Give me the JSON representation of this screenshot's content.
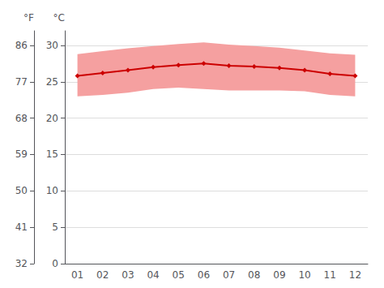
{
  "chart_data": {
    "type": "line",
    "categories": [
      "01",
      "02",
      "03",
      "04",
      "05",
      "06",
      "07",
      "08",
      "09",
      "10",
      "11",
      "12"
    ],
    "ylabel": "°C",
    "y2label": "°F",
    "ylim": [
      0,
      32
    ],
    "yticks": [
      0,
      5,
      10,
      15,
      20,
      25,
      30
    ],
    "y2lim": [
      32,
      89.6
    ],
    "y2ticks": [
      32,
      41,
      50,
      59,
      68,
      77,
      86
    ],
    "grid": true,
    "series": [
      {
        "type": "band",
        "color": "#f5a0a0",
        "low": [
          23.0,
          23.2,
          23.5,
          24.0,
          24.2,
          24.0,
          23.8,
          23.8,
          23.8,
          23.7,
          23.2,
          23.0
        ],
        "high": [
          28.8,
          29.2,
          29.6,
          29.9,
          30.2,
          30.4,
          30.1,
          29.9,
          29.7,
          29.3,
          28.9,
          28.7
        ]
      },
      {
        "type": "line",
        "color": "#cc0000",
        "marker": "diamond",
        "values": [
          25.8,
          26.2,
          26.6,
          27.0,
          27.3,
          27.5,
          27.2,
          27.1,
          26.9,
          26.6,
          26.1,
          25.8
        ]
      }
    ]
  }
}
